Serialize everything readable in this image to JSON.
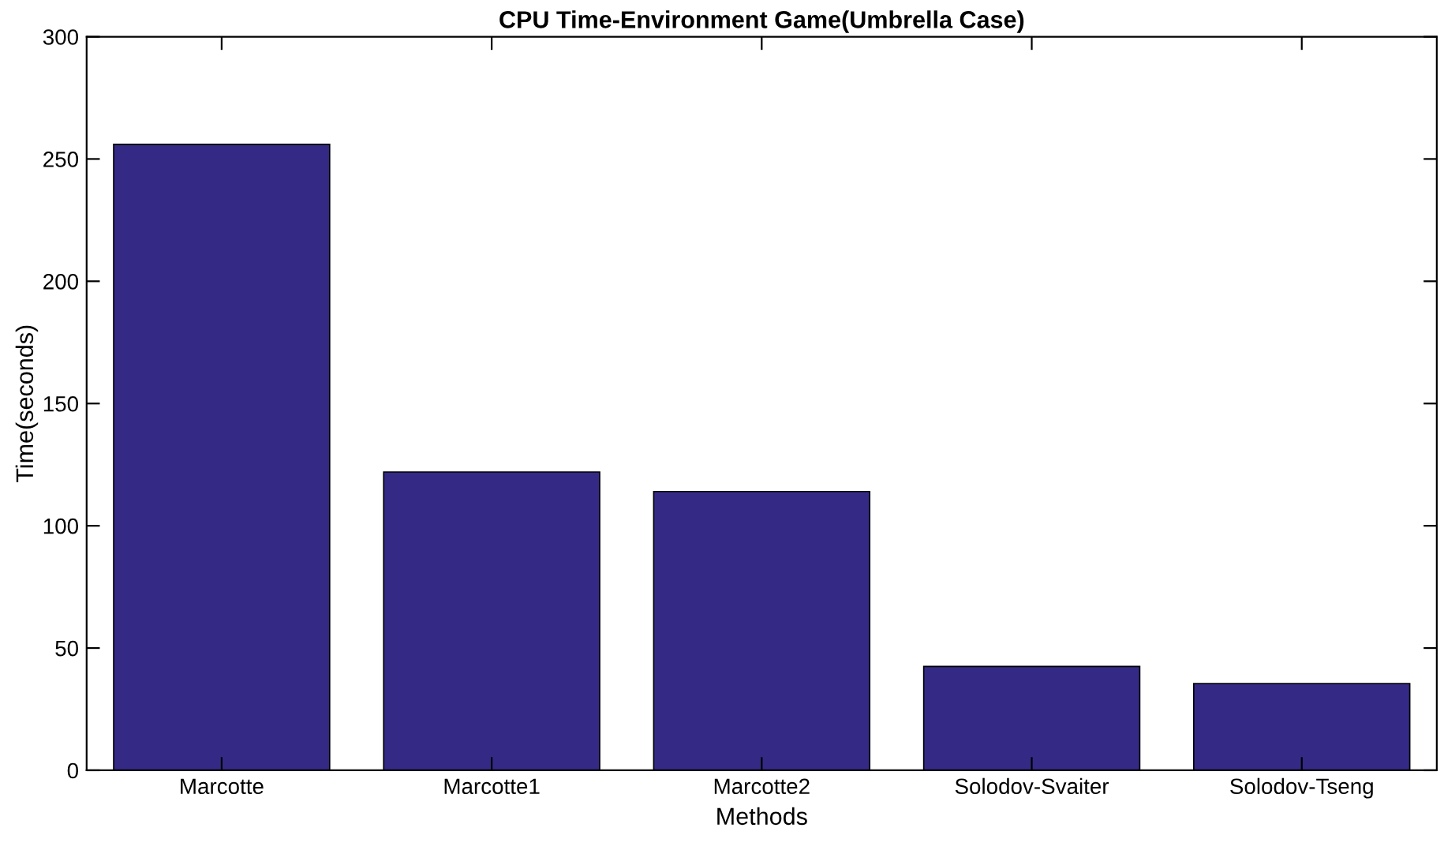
{
  "chart_data": {
    "type": "bar",
    "title": "CPU Time-Environment Game(Umbrella Case)",
    "xlabel": "Methods",
    "ylabel": "Time(seconds)",
    "categories": [
      "Marcotte",
      "Marcotte1",
      "Marcotte2",
      "Solodov-Svaiter",
      "Solodov-Tseng"
    ],
    "values": [
      256,
      122,
      114,
      42.5,
      35.5
    ],
    "color": "#342a86",
    "ylim": [
      0,
      300
    ],
    "yticks": [
      0,
      50,
      100,
      150,
      200,
      250,
      300
    ],
    "grid": false,
    "legend": false
  }
}
